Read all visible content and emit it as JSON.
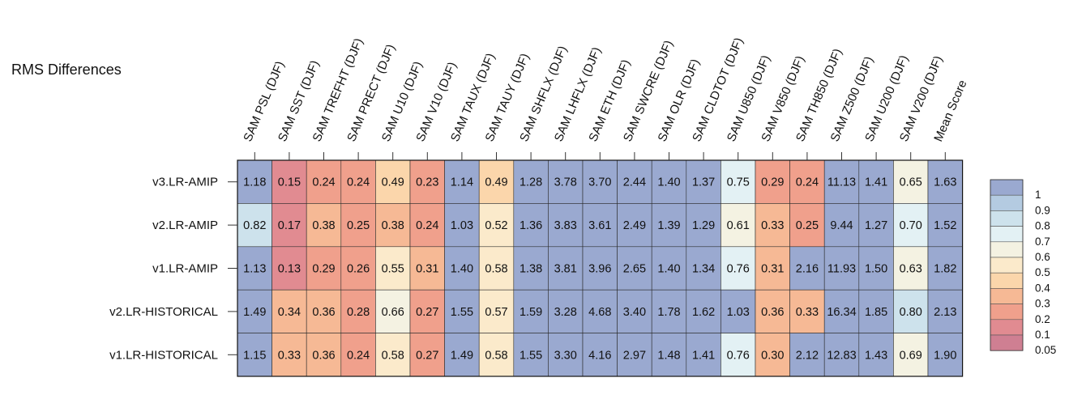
{
  "chart_data": {
    "type": "heatmap",
    "title": "RMS Differences",
    "columns": [
      "SAM PSL (DJF)",
      "SAM SST (DJF)",
      "SAM TREFHT (DJF)",
      "SAM PRECT (DJF)",
      "SAM U10 (DJF)",
      "SAM V10 (DJF)",
      "SAM TAUX (DJF)",
      "SAM TAUY (DJF)",
      "SAM SHFLX (DJF)",
      "SAM LHFLX (DJF)",
      "SAM ETH (DJF)",
      "SAM SWCRE (DJF)",
      "SAM OLR (DJF)",
      "SAM CLDTOT (DJF)",
      "SAM U850 (DJF)",
      "SAM V850 (DJF)",
      "SAM TH850 (DJF)",
      "SAM Z500 (DJF)",
      "SAM U200 (DJF)",
      "SAM V200 (DJF)",
      "Mean Score"
    ],
    "rows": [
      "v3.LR-AMIP",
      "v2.LR-AMIP",
      "v1.LR-AMIP",
      "v2.LR-HISTORICAL",
      "v1.LR-HISTORICAL"
    ],
    "values": [
      [
        "1.18",
        "0.15",
        "0.24",
        "0.24",
        "0.49",
        "0.23",
        "1.14",
        "0.49",
        "1.28",
        "3.78",
        "3.70",
        "2.44",
        "1.40",
        "1.37",
        "0.75",
        "0.29",
        "0.24",
        "11.13",
        "1.41",
        "0.65",
        "1.63"
      ],
      [
        "0.82",
        "0.17",
        "0.38",
        "0.25",
        "0.38",
        "0.24",
        "1.03",
        "0.52",
        "1.36",
        "3.83",
        "3.61",
        "2.49",
        "1.39",
        "1.29",
        "0.61",
        "0.33",
        "0.25",
        "9.44",
        "1.27",
        "0.70",
        "1.52"
      ],
      [
        "1.13",
        "0.13",
        "0.29",
        "0.26",
        "0.55",
        "0.31",
        "1.40",
        "0.58",
        "1.38",
        "3.81",
        "3.96",
        "2.65",
        "1.40",
        "1.34",
        "0.76",
        "0.31",
        "2.16",
        "11.93",
        "1.50",
        "0.63",
        "1.82"
      ],
      [
        "1.49",
        "0.34",
        "0.36",
        "0.28",
        "0.66",
        "0.27",
        "1.55",
        "0.57",
        "1.59",
        "3.28",
        "4.68",
        "3.40",
        "1.78",
        "1.62",
        "1.03",
        "0.36",
        "0.33",
        "16.34",
        "1.85",
        "0.80",
        "2.13"
      ],
      [
        "1.15",
        "0.33",
        "0.36",
        "0.24",
        "0.58",
        "0.27",
        "1.49",
        "0.58",
        "1.55",
        "3.30",
        "4.16",
        "2.97",
        "1.48",
        "1.41",
        "0.76",
        "0.30",
        "2.12",
        "12.83",
        "1.43",
        "0.69",
        "1.90"
      ]
    ],
    "colorbar": {
      "labels": [
        "1",
        "0.9",
        "0.8",
        "0.7",
        "0.6",
        "0.5",
        "0.4",
        "0.3",
        "0.2",
        "0.1",
        "0.05"
      ],
      "bounds": [
        1.0,
        0.9,
        0.8,
        0.7,
        0.6,
        0.5,
        0.4,
        0.3,
        0.2,
        0.1,
        0.05
      ],
      "colors": [
        "#9aa9d0",
        "#b4cbe1",
        "#cde2ec",
        "#e3f1f4",
        "#f4f2e2",
        "#fbeacb",
        "#fbd6ab",
        "#f6b995",
        "#f0a08c",
        "#e18b91",
        "#cf7f92"
      ]
    }
  }
}
